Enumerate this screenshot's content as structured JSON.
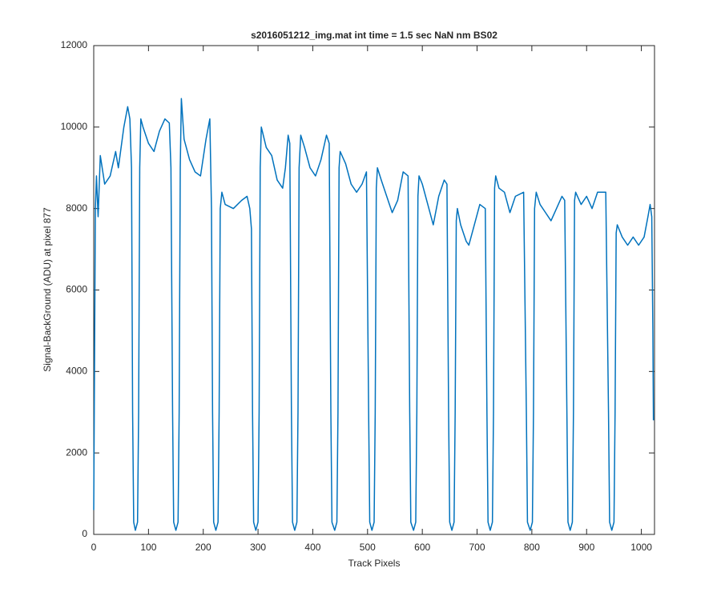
{
  "chart_data": {
    "type": "line",
    "title": "s2016051212_img.mat int time = 1.5 sec  NaN nm BS02",
    "xlabel": "Track Pixels",
    "ylabel": "Signal-BackGround (ADU) at pixel 877",
    "xlim": [
      0,
      1024
    ],
    "ylim": [
      0,
      12000
    ],
    "xticks": [
      0,
      100,
      200,
      300,
      400,
      500,
      600,
      700,
      800,
      900,
      1000
    ],
    "yticks": [
      0,
      2000,
      4000,
      6000,
      8000,
      10000,
      12000
    ],
    "grid": false,
    "x": [
      0,
      3,
      5,
      8,
      12,
      20,
      30,
      40,
      45,
      55,
      62,
      66,
      69,
      71,
      73,
      76,
      80,
      82,
      84,
      86,
      90,
      100,
      110,
      120,
      130,
      138,
      141,
      144,
      146,
      150,
      154,
      156,
      158,
      160,
      165,
      175,
      185,
      195,
      205,
      212,
      215,
      217,
      219,
      223,
      227,
      229,
      231,
      234,
      240,
      255,
      270,
      280,
      285,
      288,
      290,
      292,
      296,
      300,
      302,
      304,
      306,
      315,
      325,
      335,
      345,
      350,
      355,
      358,
      361,
      363,
      367,
      371,
      373,
      375,
      378,
      385,
      395,
      405,
      415,
      425,
      430,
      433,
      435,
      440,
      444,
      446,
      448,
      450,
      460,
      470,
      480,
      490,
      498,
      502,
      504,
      508,
      512,
      514,
      516,
      518,
      525,
      535,
      545,
      555,
      565,
      574,
      577,
      579,
      584,
      588,
      590,
      592,
      594,
      600,
      610,
      620,
      630,
      640,
      645,
      648,
      650,
      654,
      658,
      660,
      662,
      664,
      670,
      680,
      685,
      695,
      705,
      715,
      718,
      720,
      724,
      728,
      730,
      732,
      734,
      740,
      750,
      760,
      770,
      785,
      790,
      792,
      797,
      801,
      803,
      805,
      808,
      815,
      825,
      835,
      845,
      855,
      860,
      864,
      866,
      870,
      874,
      876,
      878,
      880,
      890,
      900,
      910,
      920,
      935,
      940,
      942,
      946,
      950,
      952,
      954,
      956,
      965,
      975,
      985,
      995,
      1005,
      1012,
      1016,
      1019,
      1021,
      1022
    ],
    "series": [
      {
        "name": "signal",
        "color": "#0072bd",
        "values": [
          600,
          8000,
          8800,
          7800,
          9300,
          8600,
          8800,
          9400,
          9000,
          10000,
          10500,
          10200,
          9000,
          3000,
          300,
          100,
          300,
          3000,
          9000,
          10200,
          10000,
          9600,
          9400,
          9900,
          10200,
          10100,
          9000,
          3000,
          300,
          100,
          300,
          3000,
          9000,
          10700,
          9700,
          9200,
          8900,
          8800,
          9700,
          10200,
          8000,
          3000,
          300,
          100,
          300,
          3000,
          8000,
          8400,
          8100,
          8000,
          8200,
          8300,
          8000,
          7500,
          3000,
          300,
          100,
          300,
          3000,
          9000,
          10000,
          9500,
          9300,
          8700,
          8500,
          9000,
          9800,
          9600,
          3000,
          300,
          100,
          300,
          3000,
          9000,
          9800,
          9500,
          9000,
          8800,
          9200,
          9800,
          9600,
          3000,
          300,
          100,
          300,
          3000,
          9000,
          9400,
          9100,
          8600,
          8400,
          8600,
          8900,
          3000,
          300,
          100,
          300,
          3000,
          8500,
          9000,
          8700,
          8300,
          7900,
          8200,
          8900,
          8800,
          3000,
          300,
          100,
          300,
          3000,
          8300,
          8800,
          8600,
          8100,
          7600,
          8300,
          8700,
          8600,
          3000,
          300,
          100,
          300,
          3000,
          7700,
          8000,
          7600,
          7200,
          7100,
          7600,
          8100,
          8000,
          3000,
          300,
          100,
          300,
          3000,
          8500,
          8800,
          8500,
          8400,
          7900,
          8300,
          8400,
          3000,
          300,
          100,
          300,
          3000,
          8000,
          8400,
          8100,
          7900,
          7700,
          8000,
          8300,
          8200,
          3000,
          300,
          100,
          300,
          3000,
          8200,
          8400,
          8100,
          8300,
          8000,
          8400,
          8400,
          3000,
          300,
          100,
          300,
          3000,
          7400,
          7600,
          7300,
          7100,
          7300,
          7100,
          7300,
          7800,
          8100,
          7800,
          5000,
          2800
        ]
      }
    ]
  }
}
